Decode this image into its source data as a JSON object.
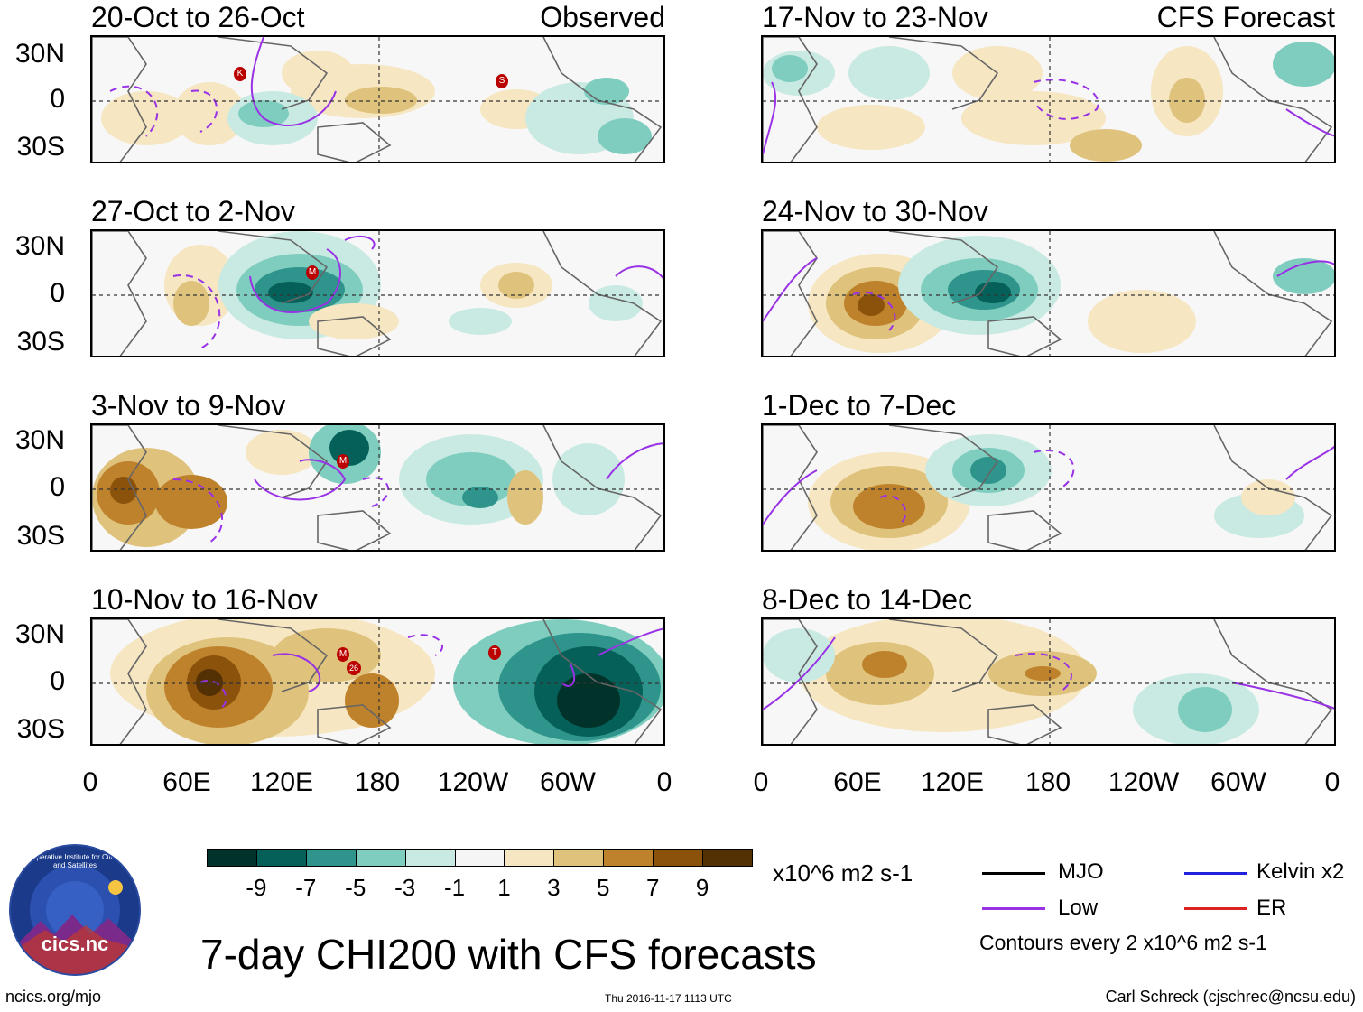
{
  "observed_label": "Observed",
  "forecast_label": "CFS Forecast",
  "panels": {
    "obs": [
      "20-Oct to 26-Oct",
      "27-Oct to 2-Nov",
      "3-Nov to 9-Nov",
      "10-Nov to 16-Nov"
    ],
    "fcst": [
      "17-Nov to 23-Nov",
      "24-Nov to 30-Nov",
      "1-Dec to 7-Dec",
      "8-Dec to 14-Dec"
    ]
  },
  "axes": {
    "lat_ticks": [
      "30N",
      "0",
      "30S"
    ],
    "lon_ticks": [
      "0",
      "60E",
      "120E",
      "180",
      "120W",
      "60W",
      "0"
    ]
  },
  "storm_markers": [
    {
      "panel": "obs1",
      "label": "K"
    },
    {
      "panel": "obs1",
      "label": "S"
    },
    {
      "panel": "obs2",
      "label": "M"
    },
    {
      "panel": "obs3",
      "label": "M"
    },
    {
      "panel": "obs4",
      "label": "M"
    },
    {
      "panel": "obs4",
      "label": "26"
    },
    {
      "panel": "obs4",
      "label": "T"
    }
  ],
  "colorbar": {
    "colors": [
      "#01332b",
      "#05605a",
      "#2f958c",
      "#7fcdbf",
      "#c9eae2",
      "#f5f5f5",
      "#f6e6c1",
      "#dfc27c",
      "#bf822c",
      "#8b520c",
      "#543005"
    ],
    "labels": [
      "-9",
      "-7",
      "-5",
      "-3",
      "-1",
      "1",
      "3",
      "5",
      "7",
      "9"
    ],
    "units": "x10^6 m2 s-1"
  },
  "legend": {
    "items": [
      {
        "label": "MJO",
        "color": "#000000"
      },
      {
        "label": "Kelvin x2",
        "color": "#2222dd"
      },
      {
        "label": "Low",
        "color": "#9932e6"
      },
      {
        "label": "ER",
        "color": "#dd2222"
      }
    ],
    "note": "Contours every 2 x10^6 m2 s-1"
  },
  "logo": {
    "text": "cics.nc",
    "ring_text": "Cooperative Institute for Climate and Satellites"
  },
  "title": "7-day CHI200 with CFS forecasts",
  "footer": {
    "left": "ncics.org/mjo",
    "center": "Thu 2016-11-17 1113 UTC",
    "right": "Carl Schreck (cjschrec@ncsu.edu)"
  }
}
